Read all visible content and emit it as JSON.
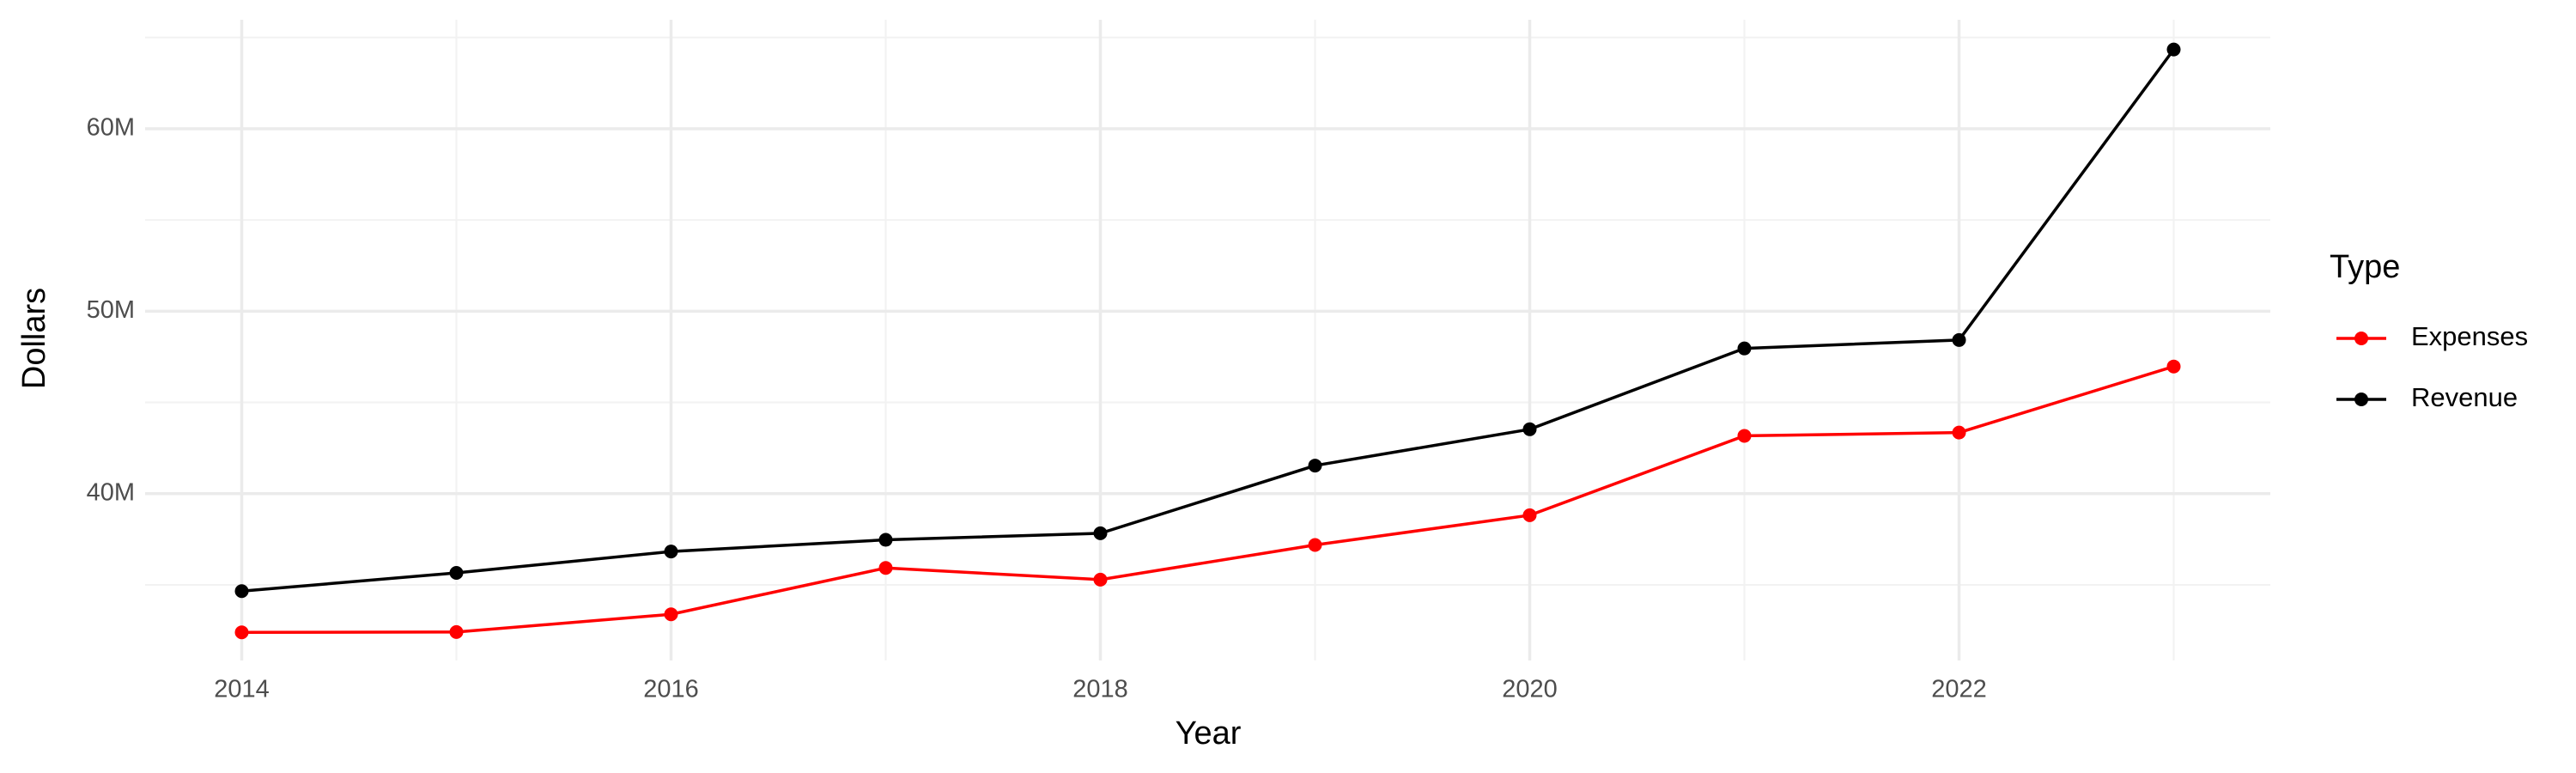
{
  "chart_data": {
    "type": "line",
    "x_label": "Year",
    "y_label": "Dollars",
    "legend_title": "Type",
    "x": [
      2014,
      2015,
      2016,
      2017,
      2018,
      2019,
      2020,
      2021,
      2022,
      2023
    ],
    "series": [
      {
        "name": "Expenses",
        "color": "#ff0000",
        "values": [
          32400000,
          32420000,
          33390000,
          35930000,
          35290000,
          37190000,
          38820000,
          43170000,
          43350000,
          46970000
        ]
      },
      {
        "name": "Revenue",
        "color": "#000000",
        "values": [
          34660000,
          35660000,
          36830000,
          37470000,
          37830000,
          41540000,
          43530000,
          47960000,
          48420000,
          64340000
        ]
      }
    ],
    "xlim": [
      2013.55,
      2023.45
    ],
    "xticks": [
      2014,
      2016,
      2018,
      2020,
      2022
    ],
    "ylim": [
      30860000,
      65970000
    ],
    "yticks": [
      {
        "value": 40000000,
        "label": "40M"
      },
      {
        "value": 50000000,
        "label": "50M"
      },
      {
        "value": 60000000,
        "label": "60M"
      }
    ],
    "grid": true,
    "legend": "right"
  }
}
